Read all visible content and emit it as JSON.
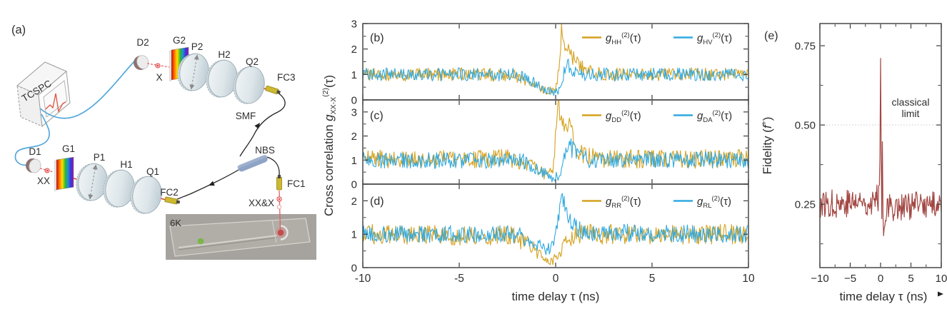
{
  "panel_a": {
    "label": "(a)",
    "components": {
      "tcspc": "TCSPC",
      "d2": "D2",
      "x_photon": "X",
      "g2": "G2",
      "p2": "P2",
      "h2": "H2",
      "q2": "Q2",
      "fc3": "FC3",
      "smf": "SMF",
      "nbs": "NBS",
      "fc1": "FC1",
      "xx_and_x": "XX&X",
      "d1": "D1",
      "xx_photon": "XX",
      "g1": "G1",
      "p1": "P1",
      "h1": "H1",
      "q1": "Q1",
      "fc2": "FC2",
      "temperature": "6K"
    },
    "colors": {
      "fiber": "#55A8DC",
      "beam": "#E8392B",
      "coupler": "#CDB92F",
      "nbs": "#8EA3C6",
      "green_spot": "#7AB648",
      "red_spot": "#C64A4A"
    }
  },
  "shared": {
    "x_label": "time delay τ (ns)",
    "x_tick_values": [
      -10,
      -5,
      0,
      5,
      10
    ],
    "x_tick_labels_mid": [
      "-10",
      "-5",
      "0",
      "5",
      "10"
    ],
    "x_tick_labels_e": [
      "−10",
      "−5",
      "0",
      "5",
      "10"
    ],
    "y_label_mid": {
      "prefix": "Cross correlation ",
      "symbol": "g",
      "subscript": "XX-X",
      "superscript": "(2)",
      "argument": "(τ)"
    },
    "legend_format": {
      "symbol": "g",
      "superscript": "(2)",
      "argument": "(τ)"
    }
  },
  "chart_data": [
    {
      "id": "b",
      "type": "line",
      "panel_label": "(b)",
      "x_range": [
        -10,
        10
      ],
      "y_range": [
        0,
        3
      ],
      "y_tick_values": [
        0,
        1,
        2,
        3
      ],
      "series": [
        {
          "name": "g_HH^(2)(τ)",
          "subscript": "HH",
          "color": "#D5A11E",
          "baseline": 1,
          "noise": 0.26,
          "keypoints": [
            [
              -10,
              1
            ],
            [
              -2.2,
              1
            ],
            [
              -1.2,
              0.6
            ],
            [
              -0.6,
              0.35
            ],
            [
              0,
              0.38
            ],
            [
              0.18,
              1.2
            ],
            [
              0.3,
              2.75
            ],
            [
              0.5,
              2.1
            ],
            [
              0.75,
              1.85
            ],
            [
              1.1,
              1.4
            ],
            [
              1.8,
              1.1
            ],
            [
              3,
              1
            ],
            [
              10,
              1
            ]
          ]
        },
        {
          "name": "g_HV^(2)(τ)",
          "subscript": "HV",
          "color": "#30A9E0",
          "baseline": 1,
          "noise": 0.26,
          "keypoints": [
            [
              -10,
              1
            ],
            [
              -1.8,
              1
            ],
            [
              -0.9,
              0.6
            ],
            [
              -0.35,
              0.35
            ],
            [
              0.1,
              0.32
            ],
            [
              0.4,
              1.0
            ],
            [
              0.6,
              1.35
            ],
            [
              1.0,
              1.1
            ],
            [
              1.6,
              1
            ],
            [
              10,
              1
            ]
          ]
        }
      ]
    },
    {
      "id": "c",
      "type": "line",
      "panel_label": "(c)",
      "x_range": [
        -10,
        10
      ],
      "y_range": [
        0,
        3.5
      ],
      "y_tick_values": [
        0,
        1,
        2,
        3
      ],
      "series": [
        {
          "name": "g_DD^(2)(τ)",
          "subscript": "DD",
          "color": "#D5A11E",
          "baseline": 1,
          "noise": 0.38,
          "keypoints": [
            [
              -10,
              1.05
            ],
            [
              -2.5,
              1.05
            ],
            [
              -1.3,
              0.8
            ],
            [
              -0.55,
              0.42
            ],
            [
              -0.15,
              0.5
            ],
            [
              0.12,
              3.3
            ],
            [
              0.3,
              2.7
            ],
            [
              0.5,
              2.2
            ],
            [
              0.7,
              2.4
            ],
            [
              0.95,
              1.7
            ],
            [
              1.4,
              1.25
            ],
            [
              2.4,
              1.05
            ],
            [
              10,
              1.05
            ]
          ]
        },
        {
          "name": "g_DA^(2)(τ)",
          "subscript": "DA",
          "color": "#30A9E0",
          "baseline": 1,
          "noise": 0.34,
          "keypoints": [
            [
              -10,
              1
            ],
            [
              -1.6,
              0.95
            ],
            [
              -0.7,
              0.55
            ],
            [
              -0.15,
              0.27
            ],
            [
              0.2,
              0.32
            ],
            [
              0.5,
              1.25
            ],
            [
              0.72,
              1.6
            ],
            [
              1.05,
              1.25
            ],
            [
              1.7,
              1.02
            ],
            [
              10,
              1
            ]
          ]
        }
      ]
    },
    {
      "id": "d",
      "type": "line",
      "panel_label": "(d)",
      "x_range": [
        -10,
        10
      ],
      "y_range": [
        0,
        2.5
      ],
      "y_tick_values": [
        0,
        1,
        2
      ],
      "series": [
        {
          "name": "g_RR^(2)(τ)",
          "subscript": "RR",
          "color": "#D5A11E",
          "baseline": 1,
          "noise": 0.3,
          "keypoints": [
            [
              -10,
              1
            ],
            [
              -2.2,
              0.95
            ],
            [
              -1.3,
              0.65
            ],
            [
              -0.75,
              0.35
            ],
            [
              -0.25,
              0.16
            ],
            [
              0.05,
              0.3
            ],
            [
              0.45,
              0.7
            ],
            [
              0.9,
              0.95
            ],
            [
              1.5,
              1
            ],
            [
              10,
              1
            ]
          ]
        },
        {
          "name": "g_RL^(2)(τ)",
          "subscript": "RL",
          "color": "#30A9E0",
          "baseline": 1,
          "noise": 0.26,
          "keypoints": [
            [
              -10,
              1
            ],
            [
              -2,
              1
            ],
            [
              -1.1,
              0.75
            ],
            [
              -0.55,
              0.5
            ],
            [
              -0.15,
              0.65
            ],
            [
              0.3,
              2.0
            ],
            [
              0.55,
              1.8
            ],
            [
              0.85,
              1.35
            ],
            [
              1.4,
              1.05
            ],
            [
              10,
              1
            ]
          ]
        }
      ]
    },
    {
      "id": "e",
      "type": "line",
      "panel_label": "(e)",
      "x_range": [
        -10,
        10
      ],
      "y_range": [
        0.05,
        0.82
      ],
      "y_tick_values": [
        0.25,
        0.5,
        0.75
      ],
      "y_tick_labels": [
        "0.25",
        "0.50",
        "0.75"
      ],
      "y_label": {
        "prefix": "Fidelity (",
        "symbol": "f",
        "superscript": "+",
        "suffix": ")"
      },
      "annotation": {
        "line1": "classical",
        "line2": "limit",
        "value": 0.5
      },
      "cursor_glyph": "◄",
      "series": [
        {
          "name": "fidelity",
          "color": "#A34743",
          "baseline": 0.25,
          "noise": 0.045,
          "keypoints": [
            [
              -10,
              0.25
            ],
            [
              -0.7,
              0.26
            ],
            [
              -0.3,
              0.28
            ],
            [
              -0.12,
              0.4
            ],
            [
              0,
              0.72
            ],
            [
              0.1,
              0.48
            ],
            [
              0.16,
              0.3
            ],
            [
              0.22,
              0.12
            ],
            [
              0.3,
              0.45
            ],
            [
              0.38,
              0.28
            ],
            [
              0.48,
              0.13
            ],
            [
              0.65,
              0.21
            ],
            [
              1,
              0.24
            ],
            [
              10,
              0.25
            ]
          ]
        }
      ]
    }
  ]
}
